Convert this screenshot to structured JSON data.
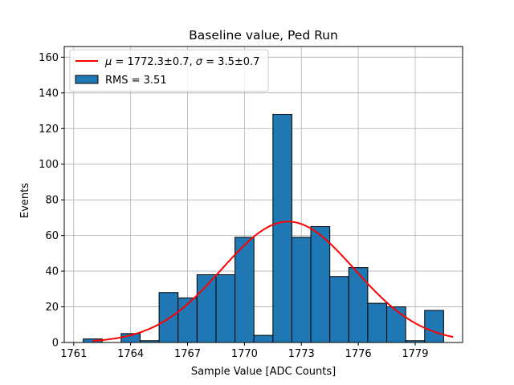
{
  "chart_data": {
    "type": "bar",
    "title": "Baseline value, Ped Run",
    "xlabel": "Sample Value [ADC Counts]",
    "ylabel": "Events",
    "xlim": [
      1760.5,
      1781.5
    ],
    "ylim": [
      0,
      166
    ],
    "x_ticks": [
      1761,
      1764,
      1767,
      1770,
      1773,
      1776,
      1779
    ],
    "y_ticks": [
      0,
      20,
      40,
      60,
      80,
      100,
      120,
      140,
      160
    ],
    "grid": true,
    "legend_position": "upper-left",
    "bar_color": "#1f77b4",
    "bar_edge_color": "#000000",
    "fit_color": "#ff0000",
    "bins": [
      {
        "left": 1761.5,
        "right": 1762.5,
        "count": 2
      },
      {
        "left": 1762.5,
        "right": 1763.5,
        "count": 0
      },
      {
        "left": 1763.5,
        "right": 1764.5,
        "count": 5
      },
      {
        "left": 1764.5,
        "right": 1765.5,
        "count": 1
      },
      {
        "left": 1765.5,
        "right": 1766.5,
        "count": 28
      },
      {
        "left": 1766.5,
        "right": 1767.5,
        "count": 25
      },
      {
        "left": 1767.5,
        "right": 1768.5,
        "count": 38
      },
      {
        "left": 1768.5,
        "right": 1769.5,
        "count": 38
      },
      {
        "left": 1769.5,
        "right": 1770.5,
        "count": 59
      },
      {
        "left": 1770.5,
        "right": 1771.5,
        "count": 4
      },
      {
        "left": 1771.5,
        "right": 1772.5,
        "count": 128
      },
      {
        "left": 1772.5,
        "right": 1773.5,
        "count": 59
      },
      {
        "left": 1773.5,
        "right": 1774.5,
        "count": 65
      },
      {
        "left": 1774.5,
        "right": 1775.5,
        "count": 37
      },
      {
        "left": 1775.5,
        "right": 1776.5,
        "count": 42
      },
      {
        "left": 1776.5,
        "right": 1777.5,
        "count": 22
      },
      {
        "left": 1777.5,
        "right": 1778.5,
        "count": 20
      },
      {
        "left": 1778.5,
        "right": 1779.5,
        "count": 1
      },
      {
        "left": 1779.5,
        "right": 1780.5,
        "count": 18
      }
    ],
    "fit": {
      "type": "gaussian",
      "mu": 1772.3,
      "sigma": 3.5,
      "amplitude": 67.8,
      "x_range": [
        1762,
        1781
      ]
    },
    "legend": [
      {
        "key": "fit",
        "label_parts": [
          "μ",
          " = 1772.3±0.7, ",
          "σ",
          " = 3.5±0.7"
        ]
      },
      {
        "key": "hist",
        "label": "RMS = 3.51"
      }
    ]
  }
}
